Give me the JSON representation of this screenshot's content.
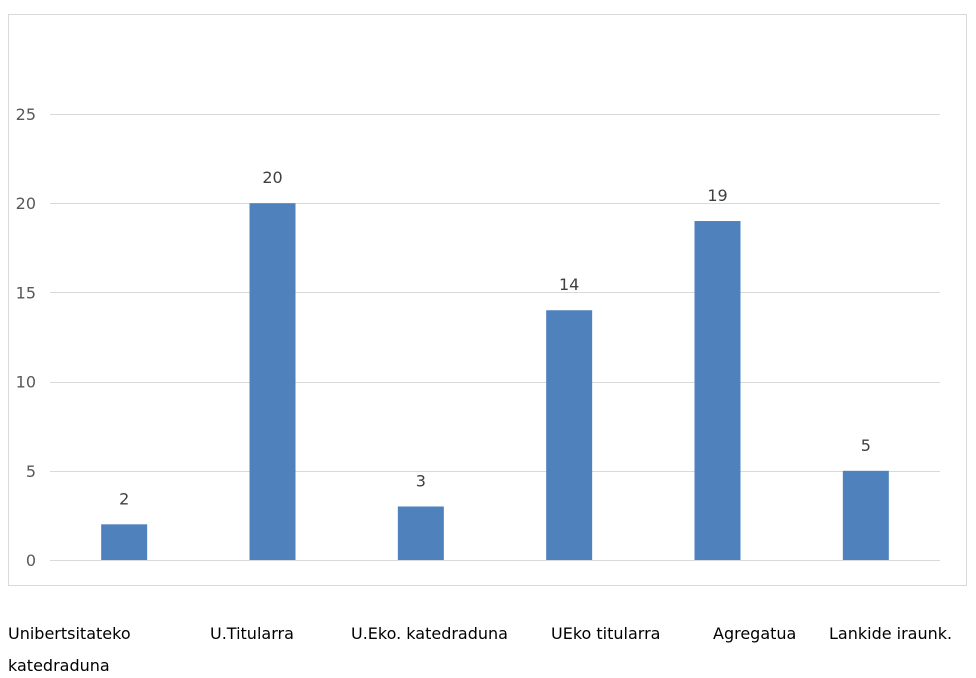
{
  "chart_data": {
    "type": "bar",
    "categories": [
      [
        "Unibertsitateko",
        "katedraduna"
      ],
      [
        "U.Titularra"
      ],
      [
        "U.Eko. katedraduna"
      ],
      [
        "UEko titularra"
      ],
      [
        "Agregatua"
      ],
      [
        "Lankide iraunk."
      ]
    ],
    "values": [
      2,
      20,
      3,
      14,
      19,
      5
    ],
    "data_labels": [
      "2",
      "20",
      "3",
      "14",
      "19",
      "5"
    ],
    "y_ticks": [
      0,
      5,
      10,
      15,
      20,
      25
    ],
    "ylim": [
      0,
      30
    ],
    "grid": true,
    "legend": "none",
    "colors": {
      "bar": "#4f81bd",
      "grid": "#d9d9d9",
      "frame": "#d9d9d9"
    }
  }
}
